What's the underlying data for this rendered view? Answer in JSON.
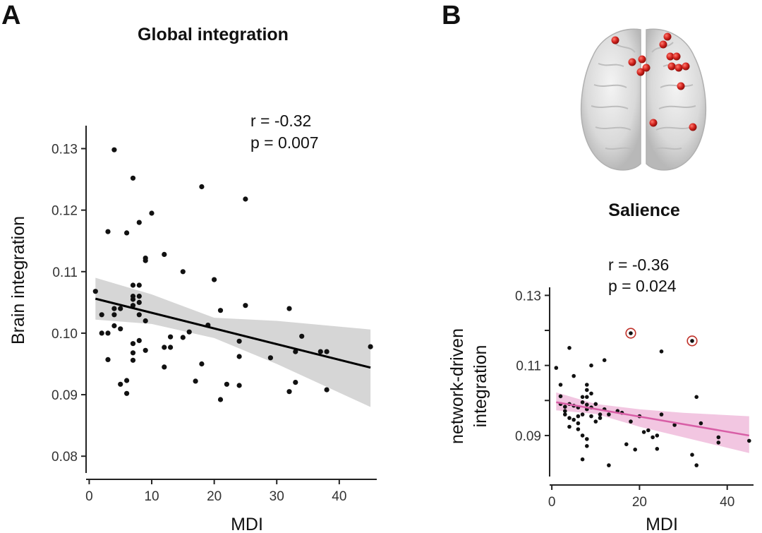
{
  "panel_a_letter": "A",
  "panel_b_letter": "B",
  "brain_image_label": "brain-network-illustration",
  "chart_data": [
    {
      "type": "scatter",
      "id": "global",
      "title": "Global integration",
      "xlabel": "MDI",
      "ylabel": "Brain integration",
      "xlim": [
        -0.5,
        46
      ],
      "ylim": [
        0.0775,
        0.1335
      ],
      "x_ticks": [
        0,
        10,
        20,
        30,
        40
      ],
      "x_tick_labels": [
        "0",
        "10",
        "20",
        "30",
        "40"
      ],
      "y_ticks": [
        0.08,
        0.09,
        0.1,
        0.11,
        0.12,
        0.13
      ],
      "y_tick_labels": [
        "0.08",
        "0.09",
        "0.10",
        "0.11",
        "0.12",
        "0.13"
      ],
      "annotation": [
        "r  = -0.32",
        "p = 0.007"
      ],
      "point_color": "#111111",
      "line_color": "#000000",
      "band_color": "#cfcfcf",
      "fit": {
        "x0": 1,
        "y0": 0.1056,
        "x1": 45,
        "y1": 0.0944
      },
      "band": [
        {
          "x": 1,
          "lo": 0.1022,
          "hi": 0.109
        },
        {
          "x": 10,
          "lo": 0.1015,
          "hi": 0.1063
        },
        {
          "x": 20,
          "lo": 0.0992,
          "hi": 0.1025
        },
        {
          "x": 30,
          "lo": 0.095,
          "hi": 0.102
        },
        {
          "x": 45,
          "lo": 0.088,
          "hi": 0.1006
        }
      ],
      "points": [
        [
          1,
          0.1068
        ],
        [
          2,
          0.103
        ],
        [
          2,
          0.1
        ],
        [
          3,
          0.1165
        ],
        [
          3,
          0.1
        ],
        [
          3,
          0.0957
        ],
        [
          4,
          0.1298
        ],
        [
          4,
          0.104
        ],
        [
          4,
          0.103
        ],
        [
          4,
          0.1012
        ],
        [
          5,
          0.104
        ],
        [
          5,
          0.1007
        ],
        [
          5,
          0.0917
        ],
        [
          6,
          0.1163
        ],
        [
          6,
          0.0923
        ],
        [
          6,
          0.0902
        ],
        [
          7,
          0.1252
        ],
        [
          7,
          0.1078
        ],
        [
          7,
          0.106
        ],
        [
          7,
          0.1055
        ],
        [
          7,
          0.1045
        ],
        [
          7,
          0.0983
        ],
        [
          7,
          0.0968
        ],
        [
          7,
          0.0956
        ],
        [
          8,
          0.118
        ],
        [
          8,
          0.1078
        ],
        [
          8,
          0.106
        ],
        [
          8,
          0.105
        ],
        [
          8,
          0.103
        ],
        [
          8,
          0.0988
        ],
        [
          9,
          0.1122
        ],
        [
          9,
          0.1118
        ],
        [
          9,
          0.102
        ],
        [
          9,
          0.0972
        ],
        [
          10,
          0.1195
        ],
        [
          12,
          0.1128
        ],
        [
          12,
          0.0977
        ],
        [
          12,
          0.0945
        ],
        [
          13,
          0.0994
        ],
        [
          13,
          0.0977
        ],
        [
          15,
          0.11
        ],
        [
          15,
          0.0993
        ],
        [
          16,
          0.1002
        ],
        [
          17,
          0.0922
        ],
        [
          18,
          0.1238
        ],
        [
          18,
          0.095
        ],
        [
          19,
          0.1013
        ],
        [
          20,
          0.1087
        ],
        [
          21,
          0.1037
        ],
        [
          21,
          0.0892
        ],
        [
          22,
          0.0917
        ],
        [
          24,
          0.0987
        ],
        [
          24,
          0.0962
        ],
        [
          24,
          0.0915
        ],
        [
          25,
          0.1218
        ],
        [
          25,
          0.1045
        ],
        [
          29,
          0.096
        ],
        [
          32,
          0.104
        ],
        [
          32,
          0.0905
        ],
        [
          33,
          0.097
        ],
        [
          33,
          0.092
        ],
        [
          34,
          0.0995
        ],
        [
          37,
          0.097
        ],
        [
          38,
          0.097
        ],
        [
          38,
          0.0908
        ],
        [
          45,
          0.0978
        ]
      ]
    },
    {
      "type": "scatter",
      "id": "salience",
      "title": "Salience",
      "xlabel": "MDI",
      "ylabel_lines": [
        "network-driven",
        "integration"
      ],
      "xlim": [
        -0.5,
        46
      ],
      "ylim": [
        0.0785,
        0.1327
      ],
      "x_ticks": [
        0,
        20,
        40
      ],
      "x_tick_labels": [
        "0",
        "20",
        "40"
      ],
      "y_ticks": [
        0.09,
        0.1,
        0.11,
        0.12,
        0.13
      ],
      "y_tick_labels": [
        "0.09",
        "",
        "0.11",
        "",
        "0.13"
      ],
      "annotation": [
        "r  = -0.36",
        "p = 0.024"
      ],
      "point_color": "#111111",
      "line_color": "#d85ea6",
      "band_color": "#f0bcdc",
      "outlier_color": "#c0322a",
      "fit": {
        "x0": 1,
        "y0": 0.0995,
        "x1": 45,
        "y1": 0.09
      },
      "band": [
        {
          "x": 1,
          "lo": 0.0972,
          "hi": 0.1023
        },
        {
          "x": 10,
          "lo": 0.0962,
          "hi": 0.099
        },
        {
          "x": 20,
          "lo": 0.0925,
          "hi": 0.0975
        },
        {
          "x": 30,
          "lo": 0.0895,
          "hi": 0.0965
        },
        {
          "x": 45,
          "lo": 0.085,
          "hi": 0.0955
        }
      ],
      "outliers": [
        [
          18,
          0.1192
        ],
        [
          32,
          0.117
        ]
      ],
      "points": [
        [
          1,
          0.1093
        ],
        [
          2,
          0.1045
        ],
        [
          2,
          0.1012
        ],
        [
          2,
          0.099
        ],
        [
          3,
          0.0982
        ],
        [
          3,
          0.097
        ],
        [
          3,
          0.096
        ],
        [
          4,
          0.115
        ],
        [
          4,
          0.099
        ],
        [
          4,
          0.095
        ],
        [
          4,
          0.0925
        ],
        [
          5,
          0.107
        ],
        [
          5,
          0.0985
        ],
        [
          5,
          0.0945
        ],
        [
          6,
          0.098
        ],
        [
          6,
          0.0955
        ],
        [
          6,
          0.0935
        ],
        [
          6,
          0.0918
        ],
        [
          7,
          0.101
        ],
        [
          7,
          0.0995
        ],
        [
          7,
          0.096
        ],
        [
          7,
          0.09
        ],
        [
          7,
          0.0832
        ],
        [
          8,
          0.1045
        ],
        [
          8,
          0.103
        ],
        [
          8,
          0.101
        ],
        [
          8,
          0.0988
        ],
        [
          8,
          0.0975
        ],
        [
          8,
          0.089
        ],
        [
          8,
          0.087
        ],
        [
          9,
          0.11
        ],
        [
          9,
          0.102
        ],
        [
          9,
          0.098
        ],
        [
          9,
          0.0955
        ],
        [
          10,
          0.099
        ],
        [
          10,
          0.094
        ],
        [
          11,
          0.096
        ],
        [
          11,
          0.095
        ],
        [
          12,
          0.1115
        ],
        [
          12,
          0.0975
        ],
        [
          13,
          0.096
        ],
        [
          13,
          0.0815
        ],
        [
          15,
          0.097
        ],
        [
          16,
          0.0965
        ],
        [
          17,
          0.0875
        ],
        [
          18,
          0.094
        ],
        [
          19,
          0.086
        ],
        [
          20,
          0.0955
        ],
        [
          21,
          0.091
        ],
        [
          22,
          0.0915
        ],
        [
          23,
          0.0895
        ],
        [
          24,
          0.09
        ],
        [
          24,
          0.0862
        ],
        [
          25,
          0.114
        ],
        [
          25,
          0.096
        ],
        [
          28,
          0.093
        ],
        [
          32,
          0.0845
        ],
        [
          33,
          0.101
        ],
        [
          33,
          0.0815
        ],
        [
          34,
          0.0935
        ],
        [
          38,
          0.0895
        ],
        [
          38,
          0.088
        ],
        [
          45,
          0.0885
        ]
      ]
    }
  ]
}
